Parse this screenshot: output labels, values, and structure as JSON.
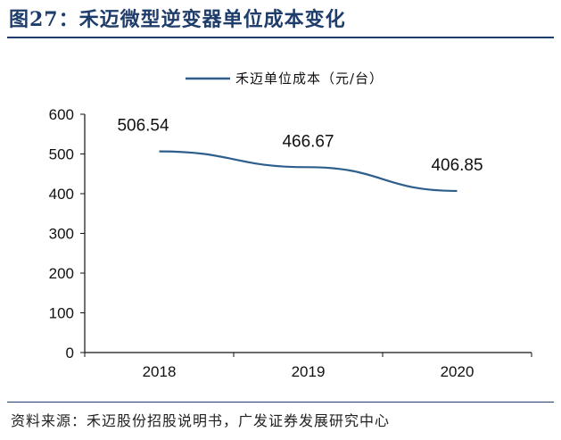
{
  "figure": {
    "title": "图27：禾迈微型逆变器单位成本变化",
    "source": "资料来源：禾迈股份招股说明书，广发证券发展研究中心"
  },
  "chart_data": {
    "type": "line",
    "title": "",
    "xlabel": "",
    "ylabel": "",
    "categories": [
      "2018",
      "2019",
      "2020"
    ],
    "series": [
      {
        "name": "禾迈单位成本（元/台）",
        "values": [
          506.54,
          466.67,
          406.85
        ],
        "labels": [
          "506.54",
          "466.67",
          "406.85"
        ],
        "color": "#2e5e8c"
      }
    ],
    "ylim": [
      0,
      600
    ],
    "yticks": [
      0,
      100,
      200,
      300,
      400,
      500,
      600
    ],
    "grid": false,
    "legend_position": "top-center"
  }
}
